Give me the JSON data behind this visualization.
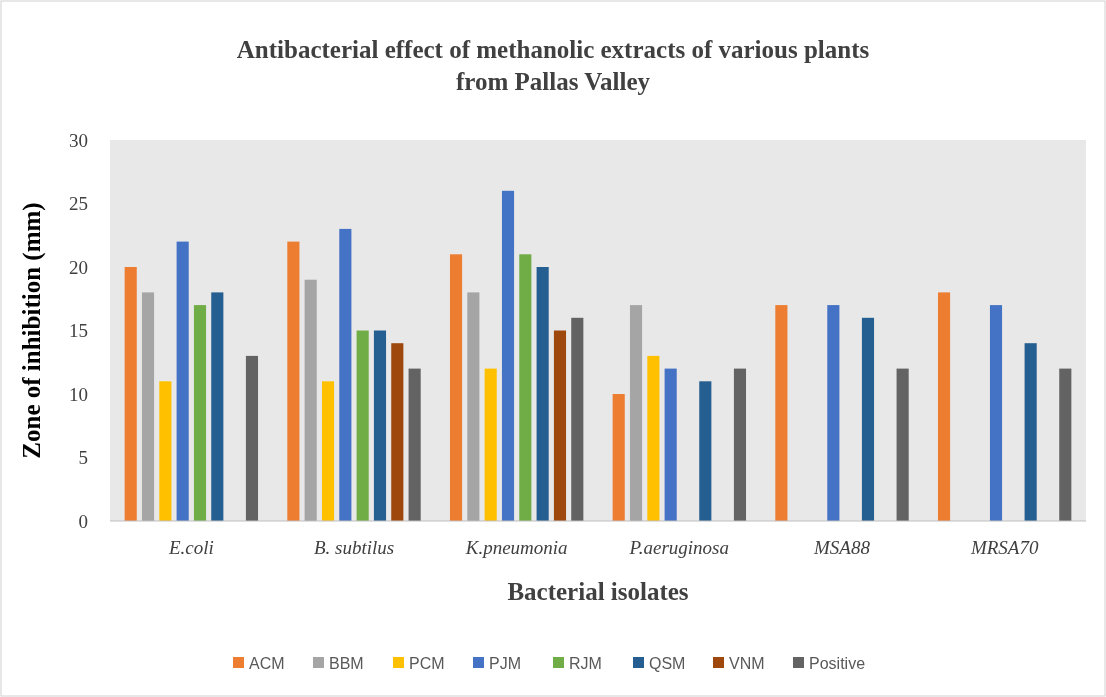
{
  "chart_data": {
    "type": "bar",
    "title": "Antibacterial effect of methanolic extracts of various plants\nfrom Pallas Valley",
    "xlabel": "Bacterial isolates",
    "ylabel": "Zone of inhibition (mm)",
    "categories": [
      "E.coli",
      "B. subtilus",
      "K.pneumonia",
      "P.aeruginosa",
      "MSA88",
      "MRSA70"
    ],
    "series": [
      {
        "name": "ACM",
        "color": "#ed7d31",
        "values": [
          20,
          22,
          21,
          10,
          17,
          18
        ]
      },
      {
        "name": "BBM",
        "color": "#a5a5a5",
        "values": [
          18,
          19,
          18,
          17,
          null,
          null
        ]
      },
      {
        "name": "PCM",
        "color": "#ffc000",
        "values": [
          11,
          11,
          12,
          13,
          null,
          null
        ]
      },
      {
        "name": "PJM",
        "color": "#4472c4",
        "values": [
          22,
          23,
          26,
          12,
          17,
          17
        ]
      },
      {
        "name": "RJM",
        "color": "#70ad47",
        "values": [
          17,
          15,
          21,
          null,
          null,
          null
        ]
      },
      {
        "name": "QSM",
        "color": "#255e91",
        "values": [
          18,
          15,
          20,
          11,
          16,
          14
        ]
      },
      {
        "name": "VNM",
        "color": "#9e480e",
        "values": [
          null,
          14,
          15,
          null,
          null,
          null
        ]
      },
      {
        "name": "Positive",
        "color": "#636363",
        "values": [
          13,
          12,
          16,
          12,
          12,
          12
        ]
      }
    ],
    "ylim": [
      0,
      30
    ],
    "yticks": [
      0,
      5,
      10,
      15,
      20,
      25,
      30
    ],
    "grid": false,
    "legend": "bottom"
  }
}
